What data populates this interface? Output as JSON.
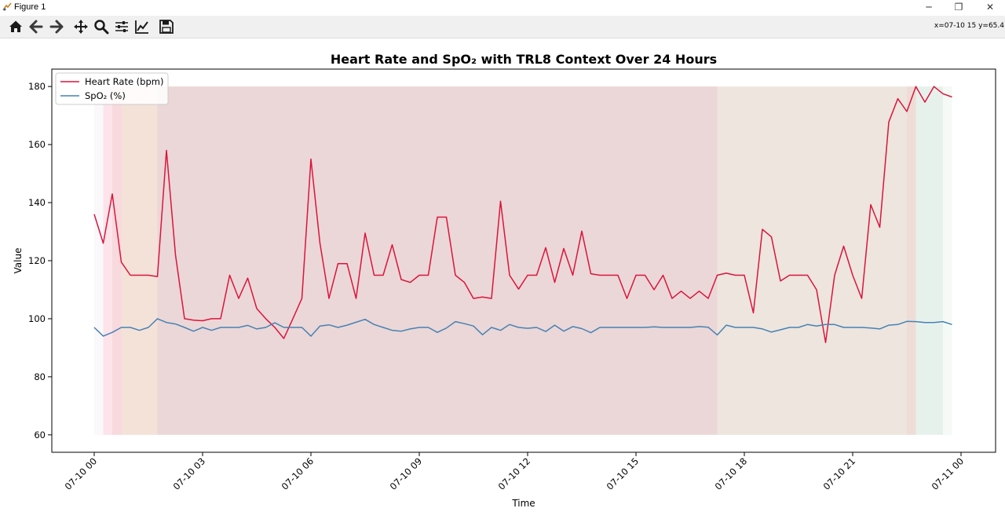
{
  "window": {
    "title": "Figure 1",
    "minimize_glyph": "─",
    "restore_glyph": "❐",
    "close_glyph": "✕"
  },
  "toolbar": {
    "buttons": [
      "home-icon",
      "back-arrow-icon",
      "forward-arrow-icon",
      "pan-icon",
      "zoom-icon",
      "configure-subplots-icon",
      "edit-axis-icon",
      "save-icon"
    ],
    "coordinates": "x=07-10 15 y=65.4"
  },
  "chart_data": {
    "type": "line",
    "title": "Heart Rate and SpO₂ with TRL8 Context Over 24 Hours",
    "xlabel": "Time",
    "ylabel": "Value",
    "x_ticks": [
      "07-10 00",
      "07-10 03",
      "07-10 06",
      "07-10 09",
      "07-10 12",
      "07-10 15",
      "07-10 18",
      "07-10 21",
      "07-11 00"
    ],
    "x_range_hours": [
      -1.2,
      24.0
    ],
    "ylim": [
      54,
      186
    ],
    "y_ticks": [
      60,
      80,
      100,
      120,
      140,
      160,
      180
    ],
    "legend_position": "top-left",
    "series": [
      {
        "name": "Heart Rate (bpm)",
        "color": "#dc143c",
        "values": [
          136,
          126,
          143,
          119.5,
          115,
          115,
          115,
          114.5,
          158,
          122,
          100,
          99.5,
          99.3,
          100,
          100,
          115,
          107,
          114,
          103.5,
          100,
          97,
          93.2,
          100,
          107,
          155,
          126,
          107,
          119,
          119,
          107,
          129.5,
          115,
          115,
          125.5,
          113.5,
          112.5,
          115,
          115,
          135,
          135,
          115,
          112.5,
          107,
          107.5,
          107,
          140.5,
          115,
          110.2,
          115,
          115,
          124.5,
          112.5,
          124.2,
          115,
          130.2,
          115.5,
          115,
          115,
          115,
          107,
          115,
          115,
          110,
          115,
          107,
          109.5,
          107,
          109.5,
          107,
          115,
          115.7,
          115,
          115,
          102,
          130.8,
          128.2,
          113,
          115,
          115,
          115,
          110,
          91.8,
          115,
          125,
          115,
          107,
          139.3,
          131.5,
          167.8,
          175.8,
          171.4,
          180,
          174.6,
          180,
          177.5,
          176.4
        ]
      },
      {
        "name": "SpO₂ (%)",
        "color": "#4682b4",
        "values": [
          97,
          94,
          95.3,
          97,
          97,
          96,
          97,
          100,
          98.7,
          98.2,
          97,
          95.7,
          97,
          96,
          97,
          97,
          97,
          97.7,
          96.5,
          97,
          98.6,
          97,
          97,
          97,
          94,
          97.5,
          97.9,
          97,
          97.8,
          98.8,
          99.8,
          98,
          97,
          96,
          95.7,
          96.5,
          97,
          97,
          95.3,
          96.8,
          99,
          98.3,
          97.5,
          94.5,
          97,
          96,
          98,
          97,
          96.7,
          97,
          95.6,
          97.8,
          95.7,
          97.3,
          96.6,
          95.2,
          97,
          97,
          97,
          97,
          97,
          97,
          97.2,
          97,
          97,
          97,
          97,
          97.3,
          97.1,
          94.4,
          97.8,
          97,
          97,
          97,
          96.5,
          95.4,
          96.2,
          97,
          97,
          98,
          97.5,
          98,
          98,
          97,
          97,
          97,
          96.8,
          96.5,
          97.8,
          98,
          99.1,
          99,
          98.7,
          98.7,
          99,
          98
        ]
      }
    ],
    "context_bands": [
      {
        "start_hour": 0.0,
        "end_hour": 0.25,
        "color": "#f3eef6",
        "opacity": 0.4
      },
      {
        "start_hour": 0.25,
        "end_hour": 0.5,
        "color": "#f9c9d6",
        "opacity": 0.5
      },
      {
        "start_hour": 0.5,
        "end_hour": 0.75,
        "color": "#f3c0c8",
        "opacity": 0.6
      },
      {
        "start_hour": 0.75,
        "end_hour": 1.75,
        "color": "#f0d8cc",
        "opacity": 0.75
      },
      {
        "start_hour": 1.75,
        "end_hour": 17.25,
        "color": "#e9d3d3",
        "opacity": 0.9
      },
      {
        "start_hour": 17.25,
        "end_hour": 22.5,
        "color": "#ece4dc",
        "opacity": 0.95
      },
      {
        "start_hour": 22.5,
        "end_hour": 22.75,
        "color": "#ecd9d2",
        "opacity": 0.9
      },
      {
        "start_hour": 22.75,
        "end_hour": 23.5,
        "color": "#e4efea",
        "opacity": 0.9
      },
      {
        "start_hour": 23.5,
        "end_hour": 23.75,
        "color": "#eef6f0",
        "opacity": 0.6
      }
    ],
    "band_range": [
      60,
      180
    ]
  }
}
